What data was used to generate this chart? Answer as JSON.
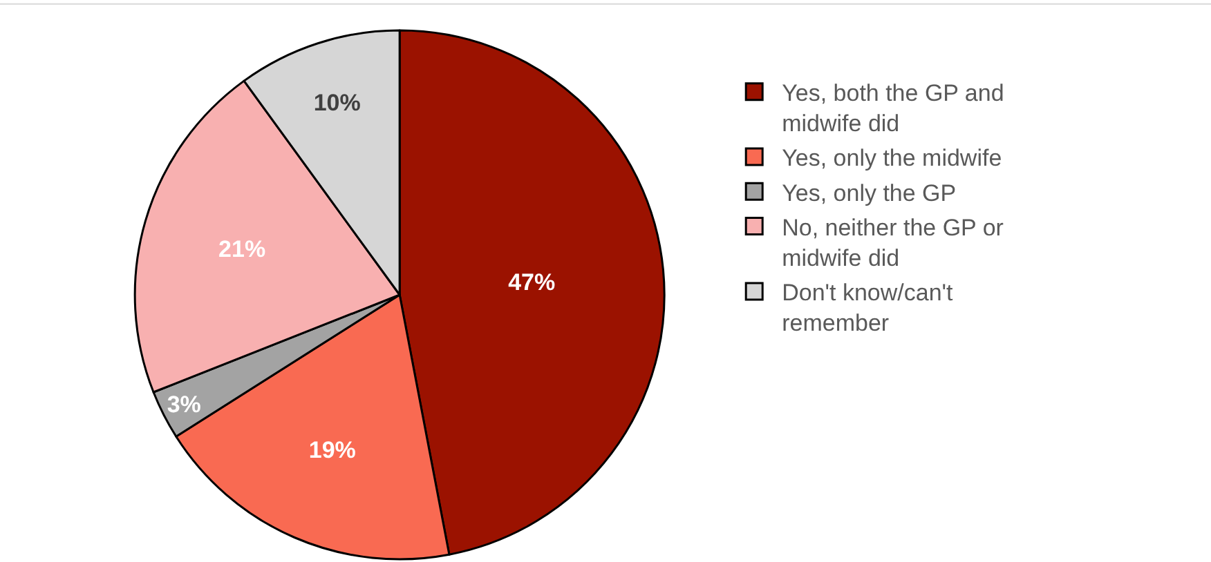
{
  "chart_data": {
    "type": "pie",
    "categories": [
      "Yes, both the GP and midwife did",
      "Yes, only the midwife",
      "Yes, only the GP",
      "No, neither the GP or midwife did",
      "Don't know/can't remember"
    ],
    "values": [
      47,
      19,
      3,
      21,
      10
    ],
    "value_labels": [
      "47%",
      "19%",
      "3%",
      "21%",
      "10%"
    ],
    "colors": [
      "#9b1200",
      "#f96a52",
      "#a3a3a3",
      "#f8b0b0",
      "#d6d6d6"
    ],
    "legend": "right"
  }
}
